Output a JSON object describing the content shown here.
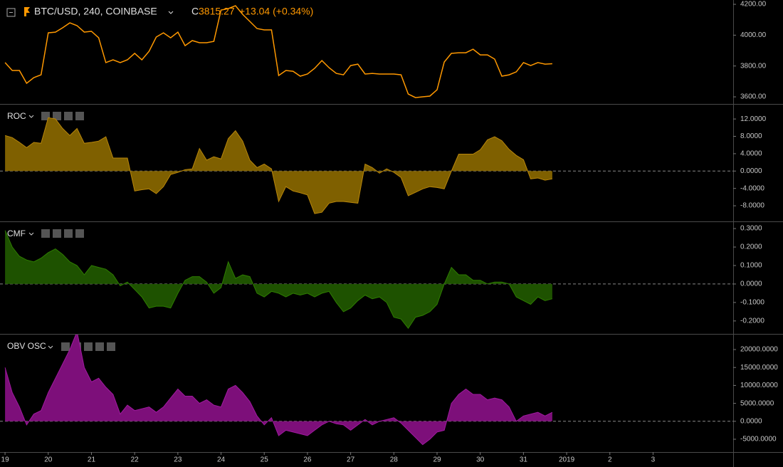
{
  "chart_data": [
    {
      "type": "line",
      "title": "BTC/USD, 240, COINBASE",
      "close_label": "C",
      "close": 3815.27,
      "change": "+13.04 (+0.34%)",
      "color": "#ff9800",
      "x": [
        0,
        4,
        8,
        12,
        16,
        20,
        24,
        28,
        32,
        36,
        40,
        44,
        48,
        52,
        56,
        60,
        64,
        68,
        72,
        76,
        80,
        84,
        88,
        92,
        96,
        100,
        104,
        108,
        112,
        116,
        120,
        124,
        128,
        132,
        136,
        140,
        144,
        148,
        152,
        156,
        160,
        164,
        168,
        172,
        176,
        180,
        184,
        188,
        192,
        196,
        200,
        204,
        208,
        212,
        216,
        220,
        224,
        228,
        232,
        236,
        240,
        244,
        248,
        252,
        256,
        260,
        264,
        268,
        272,
        276,
        280,
        284,
        288,
        292,
        296,
        300,
        304
      ],
      "values": [
        3822,
        3771,
        3771,
        3688,
        3725,
        3743,
        4015,
        4020,
        4048,
        4080,
        4062,
        4020,
        4025,
        3983,
        3822,
        3840,
        3822,
        3840,
        3882,
        3840,
        3895,
        3988,
        4015,
        3983,
        4020,
        3932,
        3965,
        3951,
        3951,
        3960,
        4163,
        4172,
        4191,
        4135,
        4089,
        4043,
        4034,
        4034,
        3738,
        3771,
        3766,
        3734,
        3748,
        3785,
        3835,
        3789,
        3752,
        3743,
        3803,
        3812,
        3748,
        3752,
        3748,
        3748,
        3748,
        3743,
        3618,
        3595,
        3600,
        3605,
        3646,
        3826,
        3882,
        3886,
        3886,
        3909,
        3872,
        3872,
        3845,
        3734,
        3743,
        3762,
        3822,
        3803,
        3822,
        3812,
        3815
      ],
      "xlim": [
        -2.8,
        404.5
      ],
      "ylim": [
        3554,
        4228
      ],
      "yticks": [
        {
          "value": 3600,
          "label": "3600.00"
        },
        {
          "value": 3800,
          "label": "3800.00"
        },
        {
          "value": 4000,
          "label": "4000.00"
        },
        {
          "value": 4200,
          "label": "4200.00"
        }
      ]
    },
    {
      "type": "area",
      "title": "ROC",
      "color": "#b8860b",
      "fill": "#7f6000",
      "hline": 0,
      "x": [
        0,
        4,
        8,
        12,
        16,
        20,
        24,
        28,
        32,
        36,
        40,
        44,
        48,
        52,
        56,
        60,
        64,
        68,
        72,
        76,
        80,
        84,
        88,
        92,
        96,
        100,
        104,
        108,
        112,
        116,
        120,
        124,
        128,
        132,
        136,
        140,
        144,
        148,
        152,
        156,
        160,
        164,
        168,
        172,
        176,
        180,
        184,
        188,
        192,
        196,
        200,
        204,
        208,
        212,
        216,
        220,
        224,
        228,
        232,
        236,
        240,
        244,
        248,
        252,
        256,
        260,
        264,
        268,
        272,
        276,
        280,
        284,
        288,
        292,
        296,
        300,
        304
      ],
      "values": [
        8.2,
        7.7,
        6.6,
        5.4,
        6.6,
        6.4,
        12.3,
        12.0,
        9.8,
        8.2,
        9.8,
        6.4,
        6.6,
        6.9,
        7.9,
        3.0,
        3.0,
        3.0,
        -4.6,
        -4.3,
        -4.1,
        -5.2,
        -3.6,
        -0.8,
        -0.3,
        0.3,
        0.5,
        5.2,
        2.5,
        3.3,
        2.8,
        7.5,
        9.3,
        6.9,
        2.5,
        0.8,
        1.6,
        0.5,
        -7.0,
        -3.6,
        -4.6,
        -5.0,
        -5.5,
        -9.8,
        -9.5,
        -7.4,
        -7.0,
        -7.0,
        -7.2,
        -7.4,
        1.6,
        0.8,
        -0.5,
        0.5,
        -0.3,
        -1.5,
        -5.7,
        -4.9,
        -4.1,
        -3.6,
        -3.8,
        -4.1,
        0,
        3.9,
        3.9,
        3.9,
        4.9,
        7.2,
        7.9,
        7.0,
        5.0,
        3.6,
        2.6,
        -1.8,
        -1.6,
        -2.1,
        -1.8
      ],
      "xlim": [
        -2.8,
        404.5
      ],
      "ylim": [
        -11.6,
        15.3
      ],
      "yticks": [
        {
          "value": -8,
          "label": "-8.0000"
        },
        {
          "value": -4,
          "label": "-4.0000"
        },
        {
          "value": 0,
          "label": "0.0000"
        },
        {
          "value": 4,
          "label": "4.0000"
        },
        {
          "value": 8,
          "label": "8.0000"
        },
        {
          "value": 12,
          "label": "12.0000"
        }
      ]
    },
    {
      "type": "area",
      "title": "CMF",
      "color": "#2e7d00",
      "fill": "#1e5200",
      "hline": 0,
      "x": [
        0,
        4,
        8,
        12,
        16,
        20,
        24,
        28,
        32,
        36,
        40,
        44,
        48,
        52,
        56,
        60,
        64,
        68,
        72,
        76,
        80,
        84,
        88,
        92,
        96,
        100,
        104,
        108,
        112,
        116,
        120,
        124,
        128,
        132,
        136,
        140,
        144,
        148,
        152,
        156,
        160,
        164,
        168,
        172,
        176,
        180,
        184,
        188,
        192,
        196,
        200,
        204,
        208,
        212,
        216,
        220,
        224,
        228,
        232,
        236,
        240,
        244,
        248,
        252,
        256,
        260,
        264,
        268,
        272,
        276,
        280,
        284,
        288,
        292,
        296,
        300,
        304
      ],
      "values": [
        0.29,
        0.2,
        0.15,
        0.13,
        0.12,
        0.14,
        0.17,
        0.19,
        0.16,
        0.12,
        0.1,
        0.05,
        0.1,
        0.09,
        0.08,
        0.05,
        -0.01,
        0.01,
        -0.03,
        -0.07,
        -0.13,
        -0.12,
        -0.12,
        -0.13,
        -0.05,
        0.02,
        0.04,
        0.04,
        0.01,
        -0.05,
        -0.02,
        0.12,
        0.03,
        0.05,
        0.04,
        -0.05,
        -0.07,
        -0.04,
        -0.05,
        -0.07,
        -0.05,
        -0.06,
        -0.05,
        -0.07,
        -0.05,
        -0.04,
        -0.1,
        -0.15,
        -0.13,
        -0.09,
        -0.06,
        -0.08,
        -0.07,
        -0.1,
        -0.18,
        -0.19,
        -0.24,
        -0.18,
        -0.17,
        -0.15,
        -0.11,
        0.0,
        0.09,
        0.05,
        0.05,
        0.02,
        0.02,
        0.0,
        0.01,
        0.01,
        0.0,
        -0.07,
        -0.09,
        -0.11,
        -0.07,
        -0.09,
        -0.08
      ],
      "xlim": [
        -2.8,
        404.5
      ],
      "ylim": [
        -0.27,
        0.335
      ],
      "yticks": [
        {
          "value": -0.2,
          "label": "-0.2000"
        },
        {
          "value": -0.1,
          "label": "-0.1000"
        },
        {
          "value": 0,
          "label": "0.0000"
        },
        {
          "value": 0.1,
          "label": "0.1000"
        },
        {
          "value": 0.2,
          "label": "0.2000"
        },
        {
          "value": 0.3,
          "label": "0.3000"
        }
      ]
    },
    {
      "type": "area",
      "title": "OBV OSC",
      "color": "#a01aa0",
      "fill": "#7d0f7a",
      "hline": 0,
      "x": [
        0,
        4,
        8,
        12,
        16,
        20,
        24,
        28,
        32,
        36,
        40,
        44,
        48,
        52,
        56,
        60,
        64,
        68,
        72,
        76,
        80,
        84,
        88,
        92,
        96,
        100,
        104,
        108,
        112,
        116,
        120,
        124,
        128,
        132,
        136,
        140,
        144,
        148,
        152,
        156,
        160,
        164,
        168,
        172,
        176,
        180,
        184,
        188,
        192,
        196,
        200,
        204,
        208,
        212,
        216,
        220,
        224,
        228,
        232,
        236,
        240,
        244,
        248,
        252,
        256,
        260,
        264,
        268,
        272,
        276,
        280,
        284,
        288,
        292,
        296,
        300,
        304
      ],
      "values": [
        15000,
        8000,
        4000,
        -1000,
        2000,
        3000,
        8000,
        12000,
        16000,
        20000,
        25000,
        15000,
        11000,
        12000,
        9500,
        7500,
        2000,
        4500,
        3000,
        3500,
        4000,
        2500,
        4000,
        6500,
        9000,
        7000,
        7000,
        5000,
        6000,
        4500,
        4000,
        9000,
        10000,
        8000,
        5500,
        1500,
        -1000,
        1000,
        -4000,
        -2500,
        -3000,
        -3500,
        -4000,
        -2500,
        -1000,
        0,
        -700,
        -1000,
        -2500,
        -1000,
        500,
        -1000,
        0,
        500,
        1000,
        -500,
        -2500,
        -4500,
        -6500,
        -5000,
        -3000,
        -2500,
        5000,
        7500,
        9000,
        7500,
        7500,
        6000,
        6500,
        6000,
        4000,
        0,
        1500,
        2000,
        2500,
        1500,
        2500
      ],
      "xlim": [
        -2.8,
        404.5
      ],
      "ylim": [
        -8570,
        24170
      ],
      "yticks": [
        {
          "value": -5000,
          "label": "-5000.0000"
        },
        {
          "value": 0,
          "label": "0.0000"
        },
        {
          "value": 5000,
          "label": "5000.0000"
        },
        {
          "value": 10000,
          "label": "10000.0000"
        },
        {
          "value": 15000,
          "label": "15000.0000"
        },
        {
          "value": 20000,
          "label": "20000.0000"
        }
      ],
      "xticks": [
        {
          "value": 0,
          "label": "19"
        },
        {
          "value": 24,
          "label": "20"
        },
        {
          "value": 48,
          "label": "21"
        },
        {
          "value": 72,
          "label": "22"
        },
        {
          "value": 96,
          "label": "23"
        },
        {
          "value": 120,
          "label": "24"
        },
        {
          "value": 144,
          "label": "25"
        },
        {
          "value": 168,
          "label": "26"
        },
        {
          "value": 192,
          "label": "27"
        },
        {
          "value": 216,
          "label": "28"
        },
        {
          "value": 240,
          "label": "29"
        },
        {
          "value": 264,
          "label": "30"
        },
        {
          "value": 288,
          "label": "31"
        },
        {
          "value": 312,
          "label": "2019"
        },
        {
          "value": 336,
          "label": "2"
        },
        {
          "value": 360,
          "label": "3"
        }
      ]
    }
  ]
}
